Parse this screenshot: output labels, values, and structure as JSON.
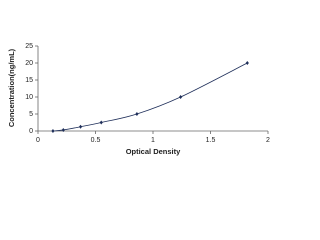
{
  "chart_data": {
    "type": "scatter",
    "x_label": "Optical Density",
    "y_label": "Concentration(ng/mL)",
    "x": [
      0.13,
      0.22,
      0.37,
      0.55,
      0.86,
      1.24,
      1.82
    ],
    "values": [
      0,
      0.31,
      1.25,
      2.5,
      5,
      10,
      20
    ],
    "color": "#1f2f5a",
    "smooth_line": true,
    "xlim": [
      0,
      2
    ],
    "xticks": [
      0,
      0.5,
      1,
      1.5,
      2
    ],
    "ylim": [
      0,
      25
    ],
    "yticks": [
      0,
      5,
      10,
      15,
      20,
      25
    ]
  }
}
